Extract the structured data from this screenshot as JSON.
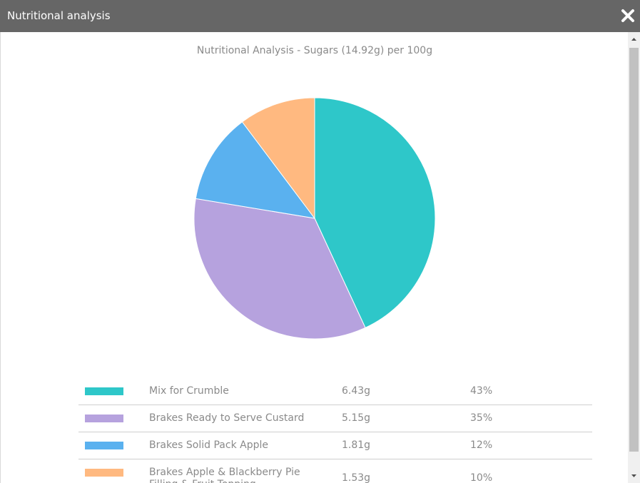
{
  "dialog": {
    "title": "Nutritional analysis"
  },
  "chart_data": {
    "type": "pie",
    "title": "Nutritional Analysis - Sugars (14.92g) per 100g",
    "slices": [
      {
        "label": "Mix for Crumble",
        "value_text": "6.43g",
        "value": 6.43,
        "percent_text": "43%",
        "percent": 43,
        "color": "#2ec7c9"
      },
      {
        "label": "Brakes Ready to Serve Custard",
        "value_text": "5.15g",
        "value": 5.15,
        "percent_text": "35%",
        "percent": 35,
        "color": "#b6a2de"
      },
      {
        "label": "Brakes Solid Pack Apple",
        "value_text": "1.81g",
        "value": 1.81,
        "percent_text": "12%",
        "percent": 12,
        "color": "#5ab1ef"
      },
      {
        "label": "Brakes Apple & Blackberry Pie Filling & Fruit Topping",
        "value_text": "1.53g",
        "value": 1.53,
        "percent_text": "10%",
        "percent": 10,
        "color": "#ffb980"
      }
    ]
  }
}
